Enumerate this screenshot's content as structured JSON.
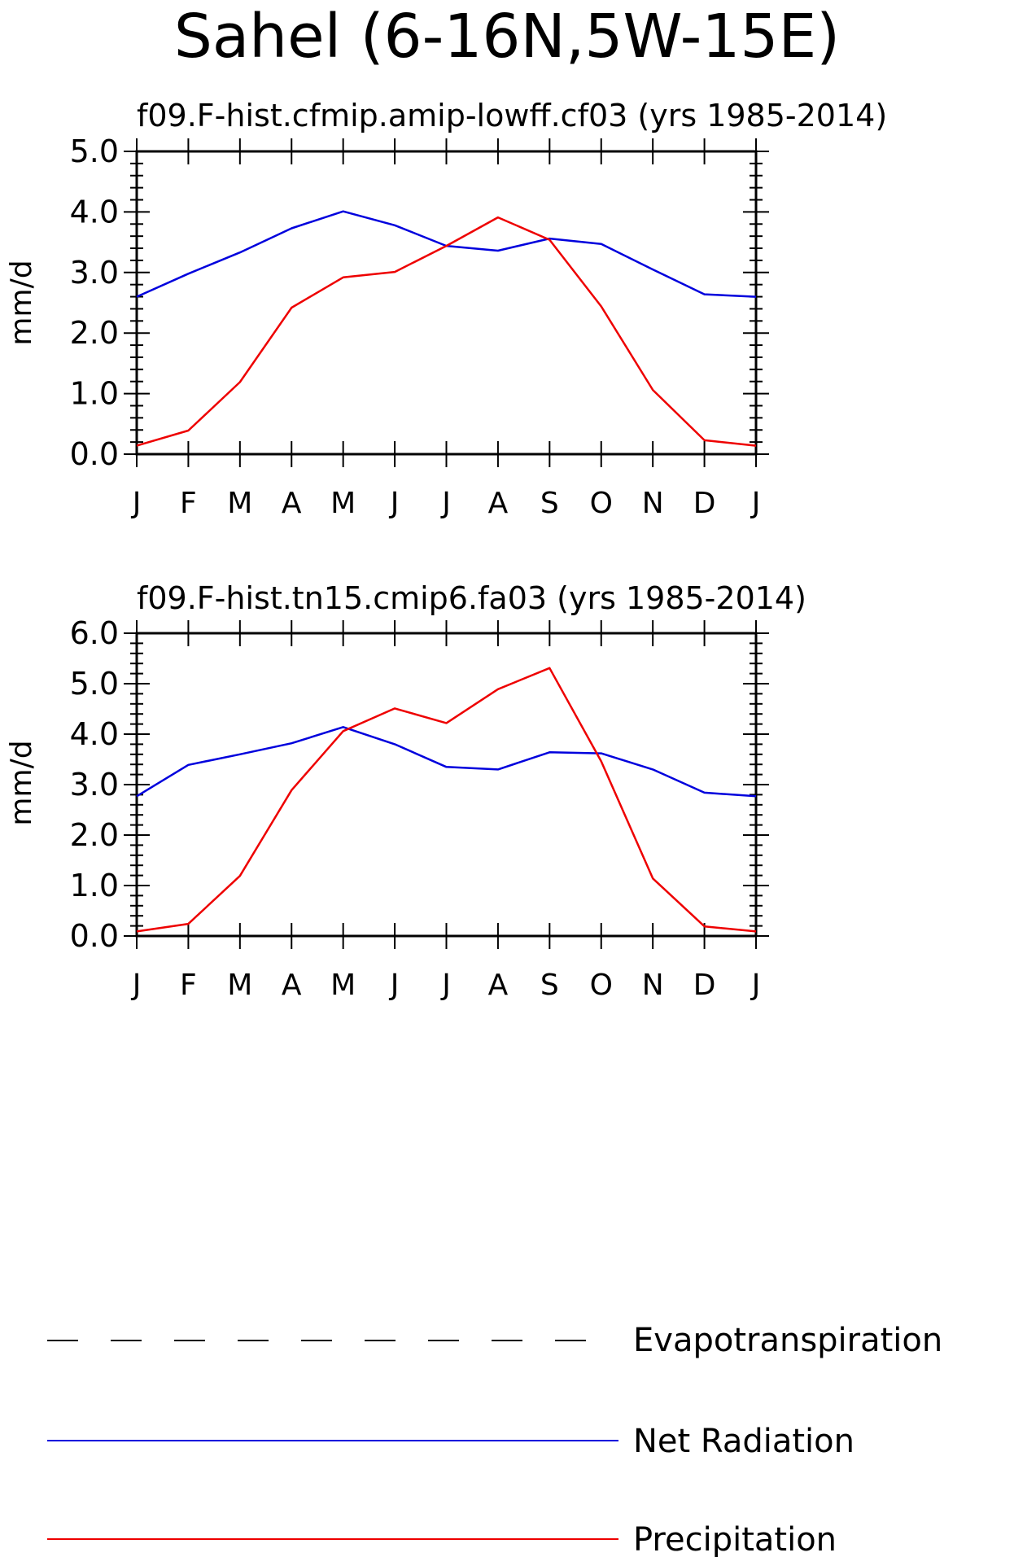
{
  "title": "Sahel (6-16N,5W-15E)",
  "chart_data": [
    {
      "type": "line",
      "title": "f09.F-hist.cfmip.amip-lowff.cf03 (yrs 1985-2014)",
      "xlabel": "",
      "ylabel": "mm/d",
      "categories": [
        "J",
        "F",
        "M",
        "A",
        "M",
        "J",
        "J",
        "A",
        "S",
        "O",
        "N",
        "D",
        "J"
      ],
      "ylim": [
        0,
        5
      ],
      "yticks": [
        "0.0",
        "1.0",
        "2.0",
        "3.0",
        "4.0",
        "5.0"
      ],
      "series": [
        {
          "name": "Net Radiation",
          "color": "#0000dd",
          "values": [
            2.6,
            2.98,
            3.33,
            3.73,
            4.01,
            3.78,
            3.44,
            3.36,
            3.56,
            3.47,
            3.05,
            2.64,
            2.6
          ]
        },
        {
          "name": "Precipitation",
          "color": "#ee0000",
          "values": [
            0.14,
            0.39,
            1.19,
            2.42,
            2.92,
            3.01,
            3.44,
            3.91,
            3.54,
            2.44,
            1.06,
            0.23,
            0.14
          ]
        }
      ]
    },
    {
      "type": "line",
      "title": "f09.F-hist.tn15.cmip6.fa03 (yrs 1985-2014)",
      "xlabel": "",
      "ylabel": "mm/d",
      "categories": [
        "J",
        "F",
        "M",
        "A",
        "M",
        "J",
        "J",
        "A",
        "S",
        "O",
        "N",
        "D",
        "J"
      ],
      "ylim": [
        0,
        6
      ],
      "yticks": [
        "0.0",
        "1.0",
        "2.0",
        "3.0",
        "4.0",
        "5.0",
        "6.0"
      ],
      "series": [
        {
          "name": "Net Radiation",
          "color": "#0000dd",
          "values": [
            2.77,
            3.39,
            3.6,
            3.82,
            4.14,
            3.8,
            3.35,
            3.3,
            3.64,
            3.62,
            3.3,
            2.84,
            2.77
          ]
        },
        {
          "name": "Precipitation",
          "color": "#ee0000",
          "values": [
            0.09,
            0.24,
            1.19,
            2.89,
            4.06,
            4.51,
            4.22,
            4.89,
            5.31,
            3.46,
            1.14,
            0.19,
            0.09
          ]
        }
      ]
    }
  ],
  "legend": [
    {
      "label": "Evapotranspiration",
      "color": "#000000",
      "dashed": true
    },
    {
      "label": "Net Radiation",
      "color": "#0000dd",
      "dashed": false
    },
    {
      "label": "Precipitation",
      "color": "#ee0000",
      "dashed": false
    }
  ]
}
